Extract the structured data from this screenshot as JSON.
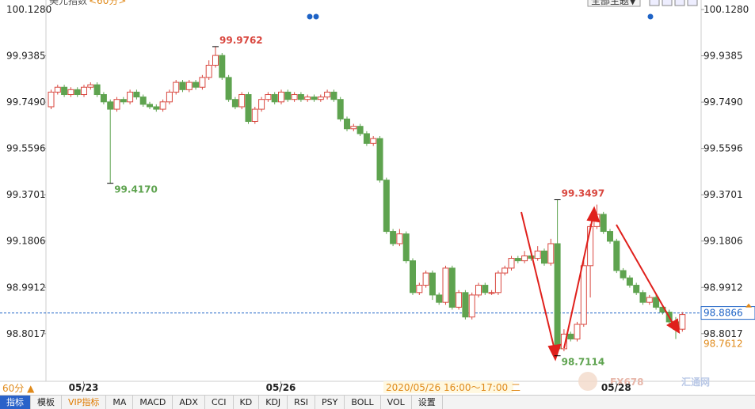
{
  "chart_data": {
    "type": "candlestick",
    "title": "美元指数",
    "period": "<60分>",
    "theme_button": "全部主题▼",
    "period_button": "60分 ▲",
    "crosshair_label": "2020/05/26 16:00～17:00 二",
    "watermark": [
      "FX678",
      "汇通网"
    ],
    "toolbar": [
      "指标",
      "模板",
      "VIP指标",
      "MA",
      "MACD",
      "ADX",
      "CCI",
      "KD",
      "KDJ",
      "RSI",
      "PSY",
      "BOLL",
      "VOL",
      "设置"
    ],
    "ylim": [
      98.6134,
      100.1668
    ],
    "yticks": [
      {
        "value": 100.128,
        "label": "100.1280"
      },
      99.9385,
      {
        "value": 99.749,
        "label": "99.7490"
      },
      99.5596,
      99.3701,
      99.1806,
      98.9912,
      98.8017
    ],
    "x_labels": [
      {
        "index": 5,
        "label": "05/23"
      },
      {
        "index": 35,
        "label": "05/26"
      },
      {
        "index": 86,
        "label": "05/28"
      }
    ],
    "up_color": "#d9473f",
    "down_color": "#5ea34f",
    "open": [
      99.73,
      99.79,
      99.81,
      99.78,
      99.8,
      99.78,
      99.81,
      99.82,
      99.78,
      99.75,
      99.72,
      99.76,
      99.75,
      99.79,
      99.77,
      99.74,
      99.73,
      99.72,
      99.75,
      99.79,
      99.83,
      99.8,
      99.83,
      99.81,
      99.85,
      99.9,
      99.94,
      99.85,
      99.76,
      99.73,
      99.78,
      99.67,
      99.72,
      99.76,
      99.78,
      99.75,
      99.79,
      99.76,
      99.78,
      99.76,
      99.77,
      99.76,
      99.77,
      99.79,
      99.76,
      99.68,
      99.64,
      99.65,
      99.62,
      99.58,
      99.6,
      99.43,
      99.22,
      99.17,
      99.21,
      99.1,
      98.97,
      99.0,
      99.05,
      98.96,
      98.93,
      99.07,
      98.91,
      98.97,
      98.87,
      98.96,
      99.0,
      98.97,
      98.97,
      99.05,
      99.07,
      99.11,
      99.1,
      99.12,
      99.11,
      99.14,
      99.09,
      99.17,
      98.74,
      98.8,
      98.78,
      98.84,
      99.08,
      99.24,
      99.29,
      99.22,
      99.18,
      99.06,
      99.03,
      99.0,
      98.97,
      98.93,
      98.95,
      98.91,
      98.89,
      98.85,
      98.82
    ],
    "high": [
      99.8,
      99.82,
      99.82,
      99.81,
      99.81,
      99.82,
      99.83,
      99.83,
      99.79,
      99.76,
      99.77,
      99.77,
      99.8,
      99.8,
      99.78,
      99.75,
      99.74,
      99.76,
      99.8,
      99.84,
      99.84,
      99.84,
      99.84,
      99.86,
      99.92,
      99.9762,
      99.95,
      99.86,
      99.77,
      99.79,
      99.79,
      99.73,
      99.77,
      99.79,
      99.79,
      99.8,
      99.8,
      99.79,
      99.79,
      99.78,
      99.78,
      99.78,
      99.8,
      99.8,
      99.77,
      99.69,
      99.66,
      99.66,
      99.63,
      99.61,
      99.61,
      99.44,
      99.23,
      99.23,
      99.22,
      99.11,
      99.01,
      99.06,
      99.06,
      98.97,
      99.08,
      99.08,
      98.98,
      98.98,
      98.97,
      99.01,
      99.01,
      98.98,
      99.06,
      99.08,
      99.12,
      99.12,
      99.14,
      99.13,
      99.16,
      99.15,
      99.19,
      99.3497,
      98.82,
      98.81,
      98.85,
      99.1,
      99.25,
      99.33,
      99.3,
      99.23,
      99.19,
      99.07,
      99.04,
      99.01,
      98.98,
      98.96,
      98.96,
      98.92,
      98.9,
      98.87,
      98.89
    ],
    "low": [
      99.72,
      99.78,
      99.77,
      99.77,
      99.77,
      99.77,
      99.8,
      99.77,
      99.74,
      99.417,
      99.71,
      99.74,
      99.74,
      99.76,
      99.73,
      99.72,
      99.71,
      99.71,
      99.74,
      99.78,
      99.79,
      99.79,
      99.8,
      99.8,
      99.84,
      99.89,
      99.84,
      99.75,
      99.72,
      99.72,
      99.66,
      99.66,
      99.71,
      99.75,
      99.74,
      99.74,
      99.75,
      99.75,
      99.75,
      99.75,
      99.75,
      99.75,
      99.76,
      99.75,
      99.67,
      99.63,
      99.63,
      99.61,
      99.57,
      99.57,
      99.42,
      99.21,
      99.16,
      99.16,
      99.09,
      98.96,
      98.96,
      98.99,
      98.94,
      98.92,
      98.92,
      98.9,
      98.9,
      98.86,
      98.86,
      98.95,
      98.96,
      98.96,
      98.96,
      99.04,
      99.06,
      99.09,
      99.09,
      99.1,
      99.1,
      99.08,
      99.08,
      98.7114,
      98.73,
      98.77,
      98.77,
      98.83,
      98.95,
      99.23,
      99.21,
      99.17,
      99.05,
      99.02,
      98.99,
      98.96,
      98.92,
      98.92,
      98.9,
      98.88,
      98.84,
      98.78,
      98.81
    ],
    "close": [
      99.79,
      99.81,
      99.78,
      99.8,
      99.78,
      99.81,
      99.82,
      99.78,
      99.75,
      99.72,
      99.76,
      99.75,
      99.79,
      99.77,
      99.74,
      99.73,
      99.72,
      99.75,
      99.79,
      99.83,
      99.8,
      99.83,
      99.81,
      99.85,
      99.9,
      99.94,
      99.85,
      99.76,
      99.73,
      99.78,
      99.67,
      99.72,
      99.76,
      99.78,
      99.75,
      99.79,
      99.76,
      99.78,
      99.76,
      99.77,
      99.76,
      99.77,
      99.79,
      99.76,
      99.68,
      99.64,
      99.65,
      99.62,
      99.58,
      99.6,
      99.43,
      99.22,
      99.17,
      99.21,
      99.1,
      98.97,
      99.0,
      99.05,
      98.96,
      98.93,
      99.07,
      98.91,
      98.97,
      98.87,
      98.96,
      99.0,
      98.97,
      98.97,
      99.05,
      99.07,
      99.11,
      99.1,
      99.12,
      99.11,
      99.14,
      99.09,
      99.17,
      98.74,
      98.8,
      98.78,
      98.84,
      99.08,
      99.24,
      99.29,
      99.22,
      99.18,
      99.06,
      99.03,
      99.0,
      98.97,
      98.93,
      98.95,
      98.91,
      98.89,
      98.85,
      98.82,
      98.88
    ],
    "annotations": [
      {
        "text": "99.9762",
        "index": 25,
        "point": "high",
        "color": "#d9473f"
      },
      {
        "text": "99.4170",
        "index": 9,
        "point": "low",
        "color": "#5ea34f"
      },
      {
        "text": "99.3497",
        "index": 77,
        "point": "high",
        "color": "#d9473f"
      },
      {
        "text": "98.7114",
        "index": 77,
        "point": "low",
        "color": "#5ea34f"
      }
    ],
    "markers": [
      {
        "value": 98.8866,
        "color": "#1e63c6",
        "line": true
      },
      {
        "value": 98.7612,
        "color": "#e08a1a",
        "line": false
      }
    ]
  }
}
